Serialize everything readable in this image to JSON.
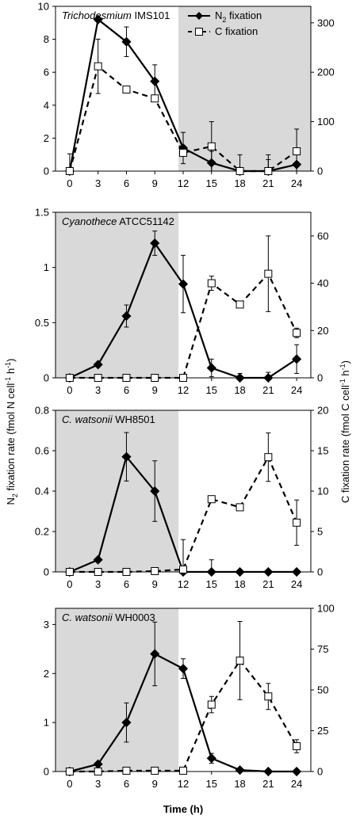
{
  "x_axis_label": "Time (h)",
  "left_axis_label": {
    "prefix": "N",
    "sub": "2",
    "main": " fixation rate  (fmol N cell",
    "sup": "-1",
    "tail": " h",
    "sup2": "-1",
    "end": ")"
  },
  "right_axis_label": {
    "main": "C fixation rate  (fmol C cell",
    "sup": "-1",
    "tail": " h",
    "sup2": "-1",
    "end": ")"
  },
  "legend": [
    {
      "name_main": "N",
      "name_sub": "2",
      "name_tail": " fixation",
      "marker": "diamond-filled",
      "line": "solid"
    },
    {
      "name_main": "C fixation",
      "name_sub": "",
      "name_tail": "",
      "marker": "square-open",
      "line": "dashed"
    }
  ],
  "colors": {
    "dark_shading": "#d9d9d9",
    "line": "#000000",
    "open_marker_fill": "#ffffff"
  },
  "chart_data": [
    {
      "type": "line",
      "organism_italic": "Trichodesmium",
      "organism_strain": " IMS101",
      "shaded_x_range": [
        11.5,
        25.5
      ],
      "show_legend": true,
      "x": [
        0,
        3,
        6,
        9,
        12,
        15,
        18,
        21,
        24
      ],
      "xlim": [
        -1.5,
        25.5
      ],
      "xticks": [
        "0",
        "3",
        "6",
        "9",
        "12",
        "15",
        "18",
        "21",
        "24"
      ],
      "ylim_left": [
        0,
        10
      ],
      "yticks_left": [
        "0",
        "2",
        "4",
        "6",
        "8",
        "10"
      ],
      "ylim_right": [
        0,
        333.33
      ],
      "yticks_right": [
        "0",
        "100",
        "200",
        "300"
      ],
      "series": [
        {
          "name": "N2 fixation",
          "axis": "left",
          "values": [
            0,
            9.2,
            7.85,
            5.45,
            1.4,
            0.5,
            0,
            0,
            0.4
          ],
          "err": [
            0,
            0,
            0.9,
            1.0,
            0.95,
            0.7,
            0,
            0.7,
            0
          ]
        },
        {
          "name": "C fixation",
          "axis": "right",
          "values": [
            0,
            212,
            165,
            147,
            37,
            50,
            0,
            0,
            40
          ],
          "err": [
            35,
            55,
            0,
            0,
            0,
            50,
            33,
            33,
            45
          ]
        }
      ]
    },
    {
      "type": "line",
      "organism_italic": "Cyanothece",
      "organism_strain": " ATCC51142",
      "shaded_x_range": [
        -1.5,
        11.5
      ],
      "show_legend": false,
      "x": [
        0,
        3,
        6,
        9,
        12,
        15,
        18,
        21,
        24
      ],
      "xlim": [
        -1.5,
        25.5
      ],
      "xticks": [
        "0",
        "3",
        "6",
        "9",
        "12",
        "15",
        "18",
        "21",
        "24"
      ],
      "ylim_left": [
        0,
        1.5
      ],
      "yticks_left": [
        "0",
        "0.5",
        "1",
        "1.5"
      ],
      "ylim_right": [
        0,
        70
      ],
      "yticks_right": [
        "0",
        "20",
        "40",
        "60"
      ],
      "series": [
        {
          "name": "N2 fixation",
          "axis": "left",
          "values": [
            0,
            0.12,
            0.56,
            1.22,
            0.85,
            0.09,
            0,
            0,
            0.17
          ],
          "err": [
            0,
            0,
            0.1,
            0.11,
            0.26,
            0.08,
            0.04,
            0.05,
            0.13
          ]
        },
        {
          "name": "C fixation",
          "axis": "right",
          "values": [
            0,
            0,
            0,
            0,
            0,
            40,
            31,
            44,
            19
          ],
          "err": [
            0,
            0,
            0,
            0,
            0,
            3,
            0,
            16,
            2
          ]
        }
      ]
    },
    {
      "type": "line",
      "organism_italic": "C. watsonii",
      "organism_strain": " WH8501",
      "shaded_x_range": [
        -1.5,
        11.5
      ],
      "show_legend": false,
      "x": [
        0,
        3,
        6,
        9,
        12,
        15,
        18,
        21,
        24
      ],
      "xlim": [
        -1.5,
        25.5
      ],
      "xticks": [
        "0",
        "3",
        "6",
        "9",
        "12",
        "15",
        "18",
        "21",
        "24"
      ],
      "ylim_left": [
        0,
        0.8
      ],
      "yticks_left": [
        "0",
        "0.2",
        "0.4",
        "0.6",
        "0.8"
      ],
      "ylim_right": [
        0,
        20
      ],
      "yticks_right": [
        "0",
        "5",
        "10",
        "15",
        "20"
      ],
      "series": [
        {
          "name": "N2 fixation",
          "axis": "left",
          "values": [
            0,
            0.06,
            0.57,
            0.4,
            0,
            0,
            0,
            0,
            0
          ],
          "err": [
            0,
            0,
            0.12,
            0.15,
            0.16,
            0.06,
            0,
            0,
            0
          ]
        },
        {
          "name": "C fixation",
          "axis": "right",
          "values": [
            0,
            0,
            0,
            0.1,
            0.3,
            9,
            8,
            14.2,
            6.1
          ],
          "err": [
            0,
            0,
            0,
            0,
            0,
            0,
            0,
            3,
            2.8
          ]
        }
      ]
    },
    {
      "type": "line",
      "organism_italic": "C. watsonii",
      "organism_strain": " WH0003",
      "shaded_x_range": [
        -1.5,
        11.5
      ],
      "show_legend": false,
      "x": [
        0,
        3,
        6,
        9,
        12,
        15,
        18,
        21,
        24
      ],
      "xlim": [
        -1.5,
        25.5
      ],
      "xticks": [
        "0",
        "3",
        "6",
        "9",
        "12",
        "15",
        "18",
        "21",
        "24"
      ],
      "ylim_left": [
        0,
        3.33
      ],
      "yticks_left": [
        "0",
        "1",
        "2",
        "3"
      ],
      "ylim_right": [
        0,
        100
      ],
      "yticks_right": [
        "0",
        "25",
        "50",
        "75",
        "100"
      ],
      "series": [
        {
          "name": "N2 fixation",
          "axis": "left",
          "values": [
            0,
            0.15,
            1.0,
            2.4,
            2.1,
            0.27,
            0.03,
            0,
            0
          ],
          "err": [
            0,
            0,
            0.4,
            0.65,
            0.2,
            0.1,
            0,
            0,
            0
          ]
        },
        {
          "name": "C fixation",
          "axis": "right",
          "values": [
            0,
            0,
            0.5,
            0.5,
            0.5,
            41,
            68,
            46,
            15.5
          ],
          "err": [
            0,
            0,
            0,
            0,
            0,
            5,
            24,
            8,
            4
          ]
        }
      ]
    }
  ]
}
